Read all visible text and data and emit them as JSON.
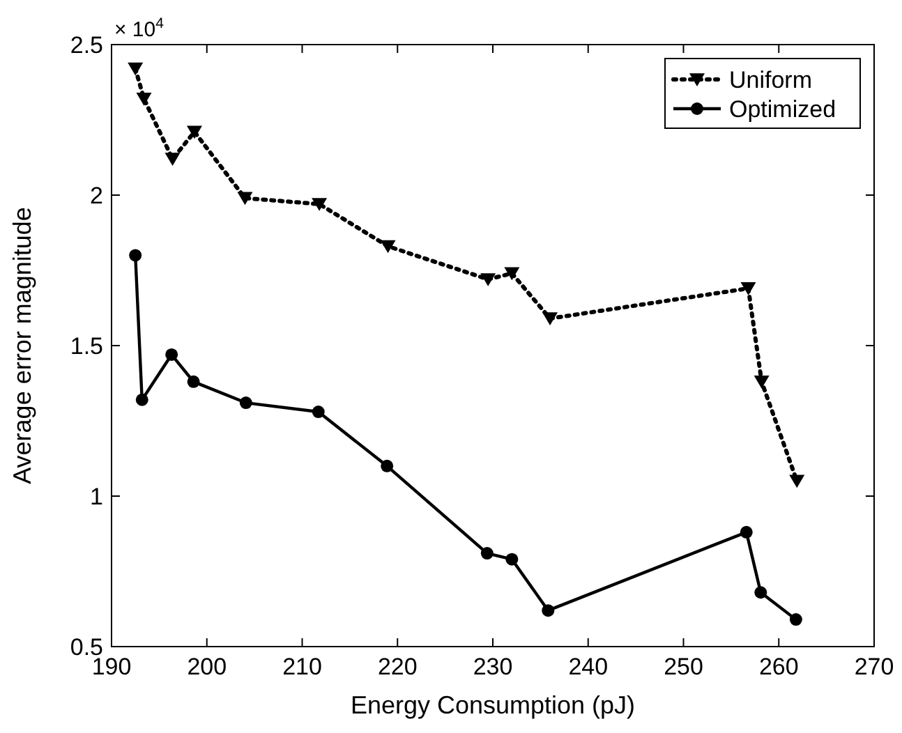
{
  "chart_data": {
    "type": "line",
    "xlabel": "Energy Consumption (pJ)",
    "ylabel": "Average error magnitude",
    "annotations": [
      "× 10$^{4}$"
    ],
    "xlim": [
      190,
      270
    ],
    "xticks": [
      190,
      200,
      210,
      220,
      230,
      240,
      250,
      260,
      270
    ],
    "ylim": [
      0.5,
      2.5
    ],
    "yticks": [
      0.5,
      1,
      1.5,
      2,
      2.5
    ],
    "grid": false,
    "legend": "top right",
    "series": [
      {
        "name": "Uniform",
        "color": "#000000",
        "marker": "triangle",
        "line_style": "dotted",
        "x": [
          192.5,
          193.4,
          196.4,
          198.7,
          204.0,
          211.8,
          219.0,
          229.5,
          232.0,
          236.0,
          256.8,
          258.2,
          261.9
        ],
        "values": [
          2.42,
          2.32,
          2.12,
          2.21,
          1.99,
          1.97,
          1.83,
          1.72,
          1.74,
          1.59,
          1.69,
          1.38,
          1.05
        ]
      },
      {
        "name": "Optimized",
        "color": "#000000",
        "marker": "circle",
        "line_style": "solid",
        "x": [
          192.5,
          193.2,
          196.3,
          198.6,
          204.1,
          211.7,
          218.9,
          229.4,
          232.0,
          235.8,
          256.6,
          258.1,
          261.8
        ],
        "values": [
          1.8,
          1.32,
          1.47,
          1.38,
          1.31,
          1.28,
          1.1,
          0.81,
          0.79,
          0.62,
          0.88,
          0.68,
          0.59
        ]
      }
    ]
  }
}
